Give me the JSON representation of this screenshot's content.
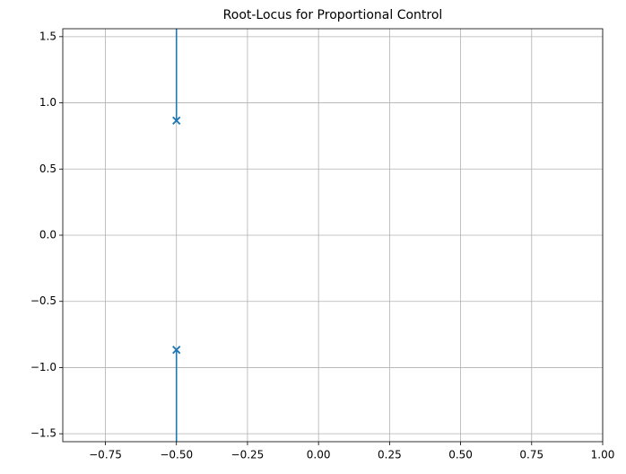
{
  "chart_data": {
    "type": "line",
    "title": "Root-Locus for Proportional Control",
    "series": [
      {
        "color": "#1f77b4",
        "x": [
          -0.5,
          -0.5
        ],
        "values": [
          0.866,
          1.56
        ]
      },
      {
        "color": "#1f77b4",
        "x": [
          -0.5,
          -0.5
        ],
        "values": [
          -0.866,
          -1.56
        ]
      },
      {
        "color": "#1f77b4",
        "marker": "x",
        "x": [
          -0.5,
          -0.5
        ],
        "values": [
          0.866,
          -0.866
        ]
      }
    ],
    "xlim": [
      -0.9,
      1.0
    ],
    "ylim": [
      -1.56,
      1.56
    ],
    "xticks": [
      {
        "value": -0.75,
        "label": "−0.75"
      },
      {
        "value": -0.5,
        "label": "−0.50"
      },
      {
        "value": -0.25,
        "label": "−0.25"
      },
      {
        "value": 0,
        "label": "0.00"
      },
      {
        "value": 0.25,
        "label": "0.25"
      },
      {
        "value": 0.5,
        "label": "0.50"
      },
      {
        "value": 0.75,
        "label": "0.75"
      },
      {
        "value": 1,
        "label": "1.00"
      }
    ],
    "yticks": [
      {
        "value": -1.5,
        "label": "−1.5"
      },
      {
        "value": -1,
        "label": "−1.0"
      },
      {
        "value": -0.5,
        "label": "−0.5"
      },
      {
        "value": 0,
        "label": "0.0"
      },
      0.5,
      {
        "value": 1,
        "label": "1.0"
      },
      1.5
    ],
    "grid": true
  }
}
